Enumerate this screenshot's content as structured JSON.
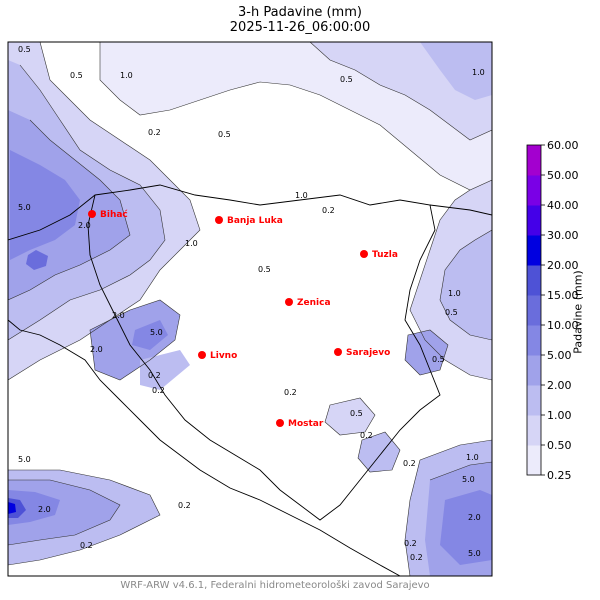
{
  "header": {
    "title": "3-h Padavine (mm)",
    "timestamp": "2025-11-26_06:00:00"
  },
  "footer": {
    "credit": "WRF-ARW v4.6.1, Federalni hidrometeorološki zavod Sarajevo"
  },
  "colorbar": {
    "axis_label": "Padavine (mm)",
    "levels": [
      "0.25",
      "0.50",
      "1.00",
      "2.00",
      "5.00",
      "10.00",
      "15.00",
      "20.00",
      "30.00",
      "40.00",
      "50.00",
      "60.00"
    ],
    "colors": [
      "#ecebfb",
      "#d6d5f6",
      "#bcbdf1",
      "#a0a2ea",
      "#8487e4",
      "#6a6ddc",
      "#4e52d6",
      "#0000e0",
      "#4400e8",
      "#7a00e6",
      "#a300cf",
      "#ffffff"
    ]
  },
  "cities": [
    {
      "name": "Bihać"
    },
    {
      "name": "Banja Luka"
    },
    {
      "name": "Tuzla"
    },
    {
      "name": "Zenica"
    },
    {
      "name": "Livno"
    },
    {
      "name": "Sarajevo"
    },
    {
      "name": "Mostar"
    }
  ],
  "contour_labels": [
    "0.5",
    "0.5",
    "1.0",
    "0.2",
    "0.5",
    "5.0",
    "2.0",
    "1.0",
    "1.0",
    "2.0",
    "5.0",
    "2.0",
    "0.2",
    "0.2",
    "0.5",
    "1.0",
    "0.5",
    "5.0",
    "2.0",
    "0.2",
    "0.2",
    "0.5",
    "0.2",
    "1.0",
    "5.0",
    "2.0",
    "0.2",
    "5.0",
    "1.0",
    "0.2",
    "0.2",
    "0.5",
    "0.5",
    "0.2",
    "0.2"
  ],
  "colors": {
    "city_marker": "#ff0000",
    "city_label": "#ff0000",
    "border": "#000000"
  }
}
